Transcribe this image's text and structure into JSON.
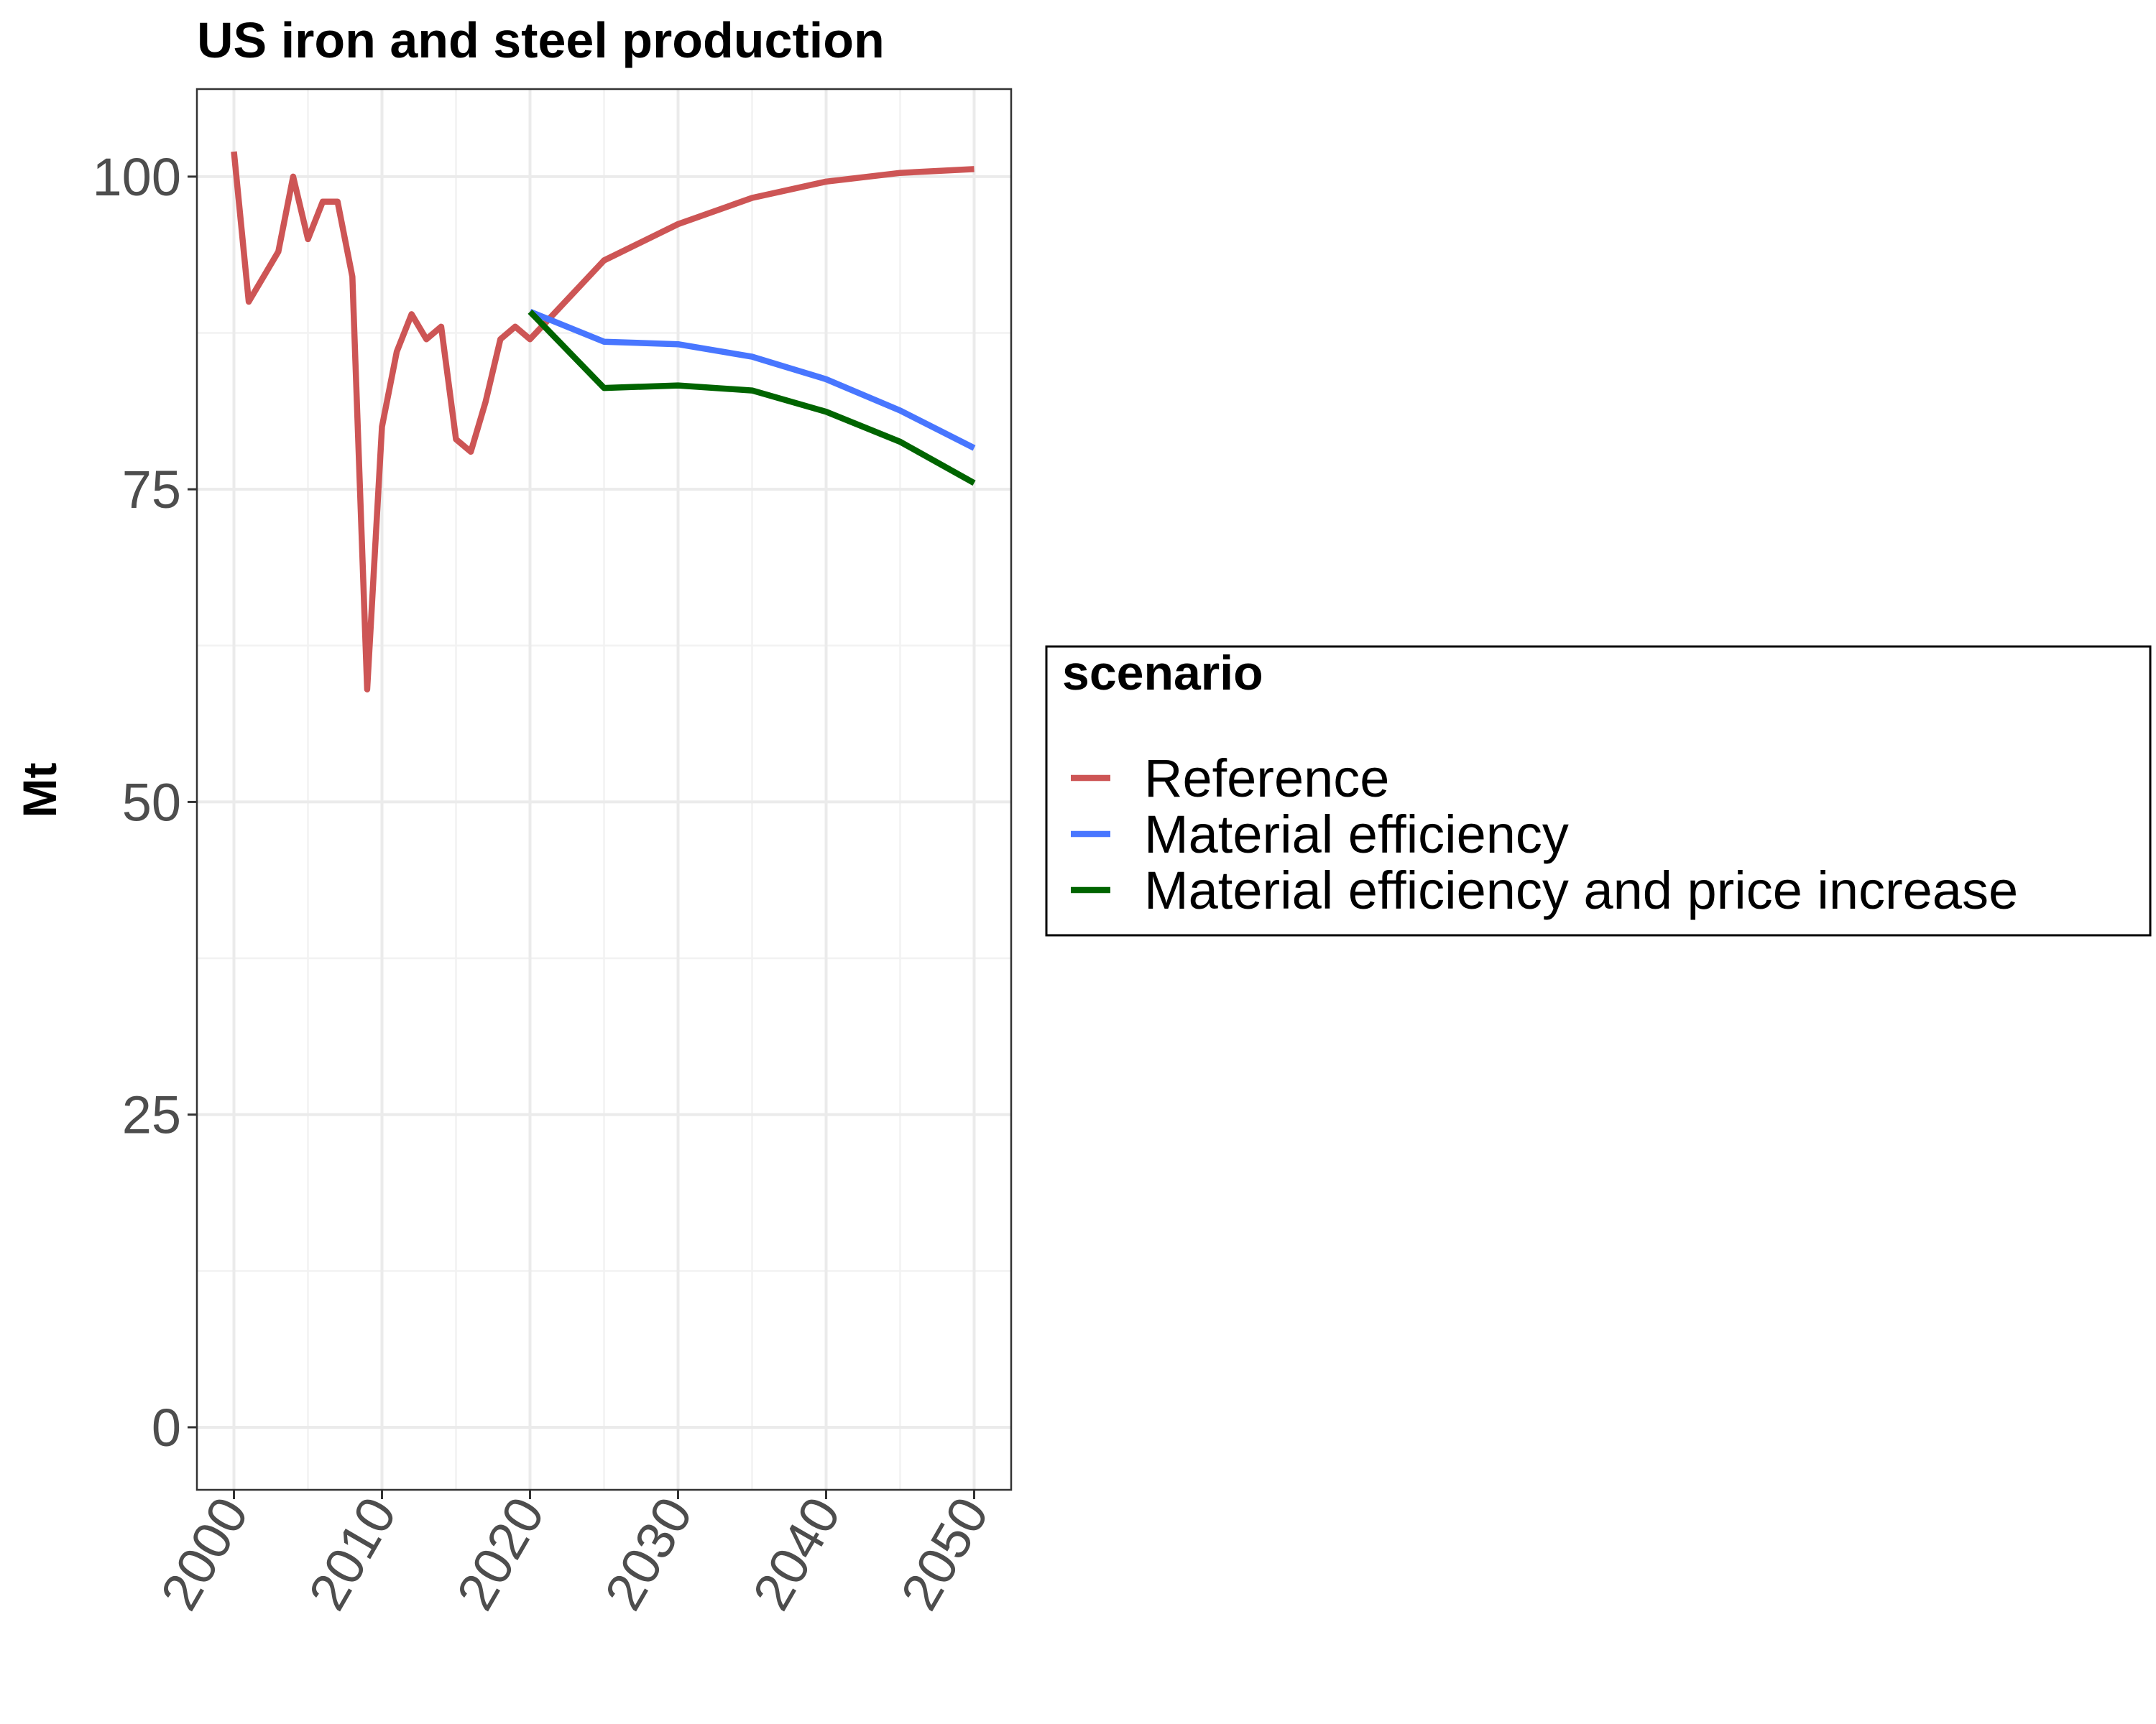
{
  "chart_data": {
    "type": "line",
    "title": "US  iron and steel production",
    "xlabel": "",
    "ylabel": "Mt",
    "xlim": [
      1997.5,
      2052.5
    ],
    "ylim": [
      -5,
      107
    ],
    "x_ticks": [
      2000,
      2010,
      2020,
      2030,
      2040,
      2050
    ],
    "x_tick_labels": [
      "2000",
      "2010",
      "2020",
      "2030",
      "2040",
      "2050"
    ],
    "y_ticks": [
      0,
      25,
      50,
      75,
      100
    ],
    "y_tick_labels": [
      "0",
      "25",
      "50",
      "75",
      "100"
    ],
    "grid": true,
    "legend": {
      "title": "scenario",
      "position": "right"
    },
    "series": [
      {
        "name": "Reference",
        "color": "#cd5555",
        "x": [
          2000,
          2001,
          2002,
          2003,
          2004,
          2005,
          2006,
          2007,
          2008,
          2009,
          2010,
          2011,
          2012,
          2013,
          2014,
          2015,
          2016,
          2017,
          2018,
          2019,
          2020,
          2025,
          2030,
          2035,
          2040,
          2045,
          2050
        ],
        "y": [
          102,
          90,
          92,
          94,
          100,
          95,
          98,
          98,
          92,
          59,
          80,
          86,
          89,
          87,
          88,
          79,
          78,
          82,
          87,
          88,
          87,
          93.3,
          96.2,
          98.3,
          99.6,
          100.3,
          100.6
        ]
      },
      {
        "name": "Material efficiency",
        "color": "#4876ff",
        "x": [
          2020,
          2025,
          2030,
          2035,
          2040,
          2045,
          2050
        ],
        "y": [
          89.2,
          86.8,
          86.6,
          85.6,
          83.8,
          81.3,
          78.3
        ]
      },
      {
        "name": "Material efficiency and price increase",
        "color": "#006400",
        "x": [
          2020,
          2025,
          2030,
          2035,
          2040,
          2045,
          2050
        ],
        "y": [
          89.2,
          83.1,
          83.3,
          82.9,
          81.2,
          78.8,
          75.5
        ]
      }
    ]
  }
}
